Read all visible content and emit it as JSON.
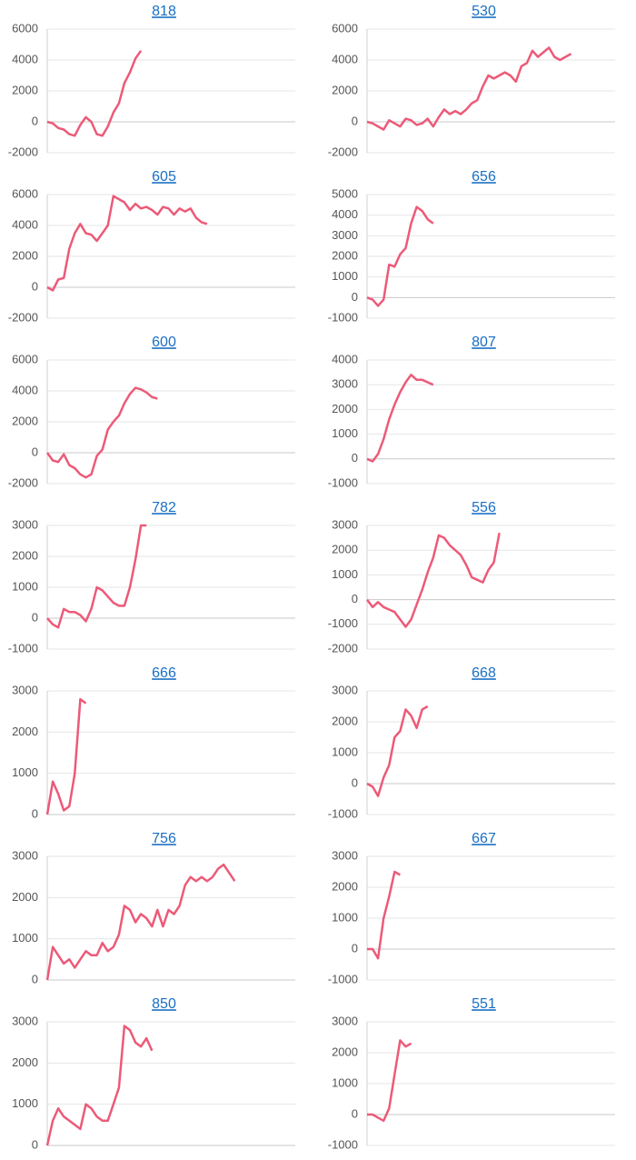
{
  "chart_data": [
    {
      "type": "line",
      "title": "818",
      "color": "#ec5a78",
      "xlim": [
        0,
        45
      ],
      "ylim": [
        -2000,
        6000
      ],
      "yticks": [
        -2000,
        0,
        2000,
        4000,
        6000
      ],
      "grid": true,
      "values": [
        0,
        -100,
        -400,
        -500,
        -800,
        -900,
        -200,
        300,
        0,
        -800,
        -900,
        -300,
        600,
        1200,
        2500,
        3200,
        4100,
        4600
      ]
    },
    {
      "type": "line",
      "title": "530",
      "color": "#ec5a78",
      "xlim": [
        0,
        45
      ],
      "ylim": [
        -2000,
        6000
      ],
      "yticks": [
        -2000,
        0,
        2000,
        4000,
        6000
      ],
      "grid": true,
      "values": [
        0,
        -100,
        -300,
        -500,
        100,
        -100,
        -300,
        200,
        100,
        -200,
        -100,
        200,
        -300,
        300,
        800,
        500,
        700,
        500,
        800,
        1200,
        1400,
        2300,
        3000,
        2800,
        3000,
        3200,
        3000,
        2600,
        3600,
        3800,
        4600,
        4200,
        4500,
        4800,
        4200,
        4000,
        4200,
        4400
      ]
    },
    {
      "type": "line",
      "title": "605",
      "color": "#ec5a78",
      "xlim": [
        0,
        45
      ],
      "ylim": [
        -2000,
        6000
      ],
      "yticks": [
        -2000,
        0,
        2000,
        4000,
        6000
      ],
      "grid": true,
      "values": [
        0,
        -200,
        500,
        600,
        2500,
        3500,
        4100,
        3500,
        3400,
        3000,
        3500,
        4000,
        5900,
        5700,
        5500,
        5000,
        5400,
        5100,
        5200,
        5000,
        4700,
        5200,
        5100,
        4700,
        5100,
        4900,
        5100,
        4500,
        4200,
        4100
      ]
    },
    {
      "type": "line",
      "title": "656",
      "color": "#ec5a78",
      "xlim": [
        0,
        45
      ],
      "ylim": [
        -1000,
        5000
      ],
      "yticks": [
        -1000,
        0,
        1000,
        2000,
        3000,
        4000,
        5000
      ],
      "grid": true,
      "values": [
        0,
        -100,
        -400,
        -100,
        1600,
        1500,
        2100,
        2400,
        3600,
        4400,
        4200,
        3800,
        3600
      ]
    },
    {
      "type": "line",
      "title": "600",
      "color": "#ec5a78",
      "xlim": [
        0,
        45
      ],
      "ylim": [
        -2000,
        6000
      ],
      "yticks": [
        -2000,
        0,
        2000,
        4000,
        6000
      ],
      "grid": true,
      "values": [
        0,
        -500,
        -600,
        -100,
        -800,
        -1000,
        -1400,
        -1600,
        -1400,
        -200,
        200,
        1500,
        2000,
        2400,
        3200,
        3800,
        4200,
        4100,
        3900,
        3600,
        3500
      ]
    },
    {
      "type": "line",
      "title": "807",
      "color": "#ec5a78",
      "xlim": [
        0,
        45
      ],
      "ylim": [
        -1000,
        4000
      ],
      "yticks": [
        -1000,
        0,
        1000,
        2000,
        3000,
        4000
      ],
      "grid": true,
      "values": [
        0,
        -100,
        200,
        800,
        1600,
        2200,
        2700,
        3100,
        3400,
        3200,
        3200,
        3100,
        3000
      ]
    },
    {
      "type": "line",
      "title": "782",
      "color": "#ec5a78",
      "xlim": [
        0,
        45
      ],
      "ylim": [
        -1000,
        3000
      ],
      "yticks": [
        -1000,
        0,
        1000,
        2000,
        3000
      ],
      "grid": true,
      "values": [
        0,
        -200,
        -300,
        300,
        200,
        200,
        100,
        -100,
        300,
        1000,
        900,
        700,
        500,
        400,
        400,
        1000,
        1900,
        3000,
        3000
      ]
    },
    {
      "type": "line",
      "title": "556",
      "color": "#ec5a78",
      "xlim": [
        0,
        45
      ],
      "ylim": [
        -2000,
        3000
      ],
      "yticks": [
        -2000,
        -1000,
        0,
        1000,
        2000,
        3000
      ],
      "grid": true,
      "values": [
        0,
        -300,
        -100,
        -300,
        -400,
        -500,
        -800,
        -1100,
        -800,
        -200,
        400,
        1100,
        1700,
        2600,
        2500,
        2200,
        2000,
        1800,
        1400,
        900,
        800,
        700,
        1200,
        1500,
        2700
      ]
    },
    {
      "type": "line",
      "title": "666",
      "color": "#ec5a78",
      "xlim": [
        0,
        45
      ],
      "ylim": [
        0,
        3000
      ],
      "yticks": [
        0,
        1000,
        2000,
        3000
      ],
      "grid": true,
      "values": [
        0,
        800,
        500,
        100,
        200,
        1000,
        2800,
        2700
      ]
    },
    {
      "type": "line",
      "title": "668",
      "color": "#ec5a78",
      "xlim": [
        0,
        45
      ],
      "ylim": [
        -1000,
        3000
      ],
      "yticks": [
        -1000,
        0,
        1000,
        2000,
        3000
      ],
      "grid": true,
      "values": [
        0,
        -100,
        -400,
        200,
        600,
        1500,
        1700,
        2400,
        2200,
        1800,
        2400,
        2500
      ]
    },
    {
      "type": "line",
      "title": "756",
      "color": "#ec5a78",
      "xlim": [
        0,
        45
      ],
      "ylim": [
        0,
        3000
      ],
      "yticks": [
        0,
        1000,
        2000,
        3000
      ],
      "grid": true,
      "values": [
        0,
        800,
        600,
        400,
        500,
        300,
        500,
        700,
        600,
        600,
        900,
        700,
        800,
        1100,
        1800,
        1700,
        1400,
        1600,
        1500,
        1300,
        1700,
        1300,
        1700,
        1600,
        1800,
        2300,
        2500,
        2400,
        2500,
        2400,
        2500,
        2700,
        2800,
        2600,
        2400
      ]
    },
    {
      "type": "line",
      "title": "667",
      "color": "#ec5a78",
      "xlim": [
        0,
        45
      ],
      "ylim": [
        -1000,
        3000
      ],
      "yticks": [
        -1000,
        0,
        1000,
        2000,
        3000
      ],
      "grid": true,
      "values": [
        0,
        0,
        -300,
        1000,
        1700,
        2500,
        2400
      ]
    },
    {
      "type": "line",
      "title": "850",
      "color": "#ec5a78",
      "xlim": [
        0,
        45
      ],
      "ylim": [
        0,
        3000
      ],
      "yticks": [
        0,
        1000,
        2000,
        3000
      ],
      "grid": true,
      "values": [
        0,
        600,
        900,
        700,
        600,
        500,
        400,
        1000,
        900,
        700,
        600,
        600,
        1000,
        1400,
        2900,
        2800,
        2500,
        2400,
        2600,
        2300
      ]
    },
    {
      "type": "line",
      "title": "551",
      "color": "#ec5a78",
      "xlim": [
        0,
        45
      ],
      "ylim": [
        -1000,
        3000
      ],
      "yticks": [
        -1000,
        0,
        1000,
        2000,
        3000
      ],
      "grid": true,
      "values": [
        0,
        0,
        -100,
        -200,
        200,
        1300,
        2400,
        2200,
        2300
      ]
    }
  ]
}
